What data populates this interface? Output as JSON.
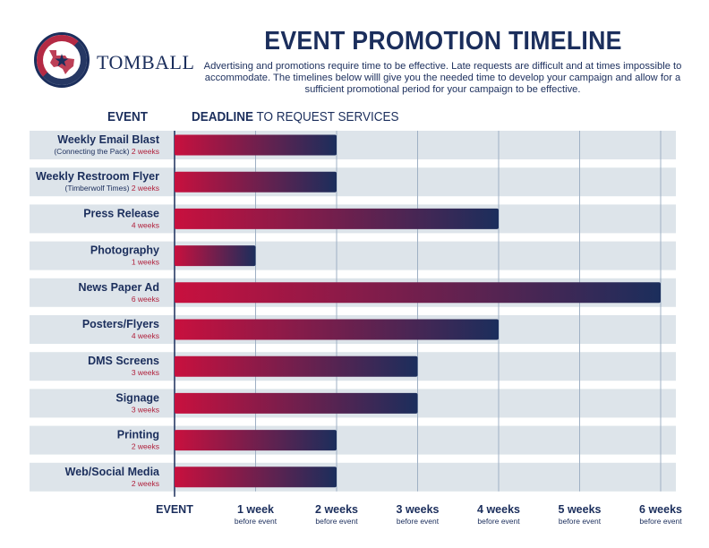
{
  "brand": {
    "name": "TOMBALL",
    "seal_text": "LONE STAR COLLEGE",
    "colors": {
      "navy": "#1b2e5c",
      "crimson": "#b01f3a",
      "row_bg": "#dde4ea"
    }
  },
  "header": {
    "title": "EVENT PROMOTION TIMELINE",
    "subtitle": "Advertising and promotions require time to be effective. Late requests are difficult and at times impossible to accommodate. The timelines below willl give you the needed time to develop your campaign and allow for a sufficient promotional period for your campaign to be effective.",
    "col_event": "EVENT",
    "col_deadline_bold": "DEADLINE",
    "col_deadline_rest": " TO REQUEST SERVICES"
  },
  "chart_data": {
    "type": "bar",
    "orientation": "horizontal",
    "gradient": [
      "#c8103e",
      "#1b2e5c"
    ],
    "grid": true,
    "xlim": [
      0,
      6
    ],
    "x_ticks": [
      {
        "value": 0,
        "label": "EVENT",
        "sub": ""
      },
      {
        "value": 1,
        "label": "1 week",
        "sub": "before event"
      },
      {
        "value": 2,
        "label": "2 weeks",
        "sub": "before event"
      },
      {
        "value": 3,
        "label": "3 weeks",
        "sub": "before event"
      },
      {
        "value": 4,
        "label": "4 weeks",
        "sub": "before event"
      },
      {
        "value": 5,
        "label": "5 weeks",
        "sub": "before event"
      },
      {
        "value": 6,
        "label": "6 weeks",
        "sub": "before event"
      }
    ],
    "rows": [
      {
        "name": "Weekly Email Blast",
        "note": "(Connecting the Pack)",
        "weeks_label": "2 weeks",
        "value": 2
      },
      {
        "name": "Weekly Restroom Flyer",
        "note": "(Timberwolf Times)",
        "weeks_label": "2 weeks",
        "value": 2
      },
      {
        "name": "Press Release",
        "note": "",
        "weeks_label": "4 weeks",
        "value": 4
      },
      {
        "name": "Photography",
        "note": "",
        "weeks_label": "1 weeks",
        "value": 1
      },
      {
        "name": "News Paper Ad",
        "note": "",
        "weeks_label": "6 weeks",
        "value": 6
      },
      {
        "name": "Posters/Flyers",
        "note": "",
        "weeks_label": "4 weeks",
        "value": 4
      },
      {
        "name": "DMS Screens",
        "note": "",
        "weeks_label": "3 weeks",
        "value": 3
      },
      {
        "name": "Signage",
        "note": "",
        "weeks_label": "3 weeks",
        "value": 3
      },
      {
        "name": "Printing",
        "note": "",
        "weeks_label": "2 weeks",
        "value": 2
      },
      {
        "name": "Web/Social Media",
        "note": "",
        "weeks_label": "2 weeks",
        "value": 2
      }
    ]
  }
}
